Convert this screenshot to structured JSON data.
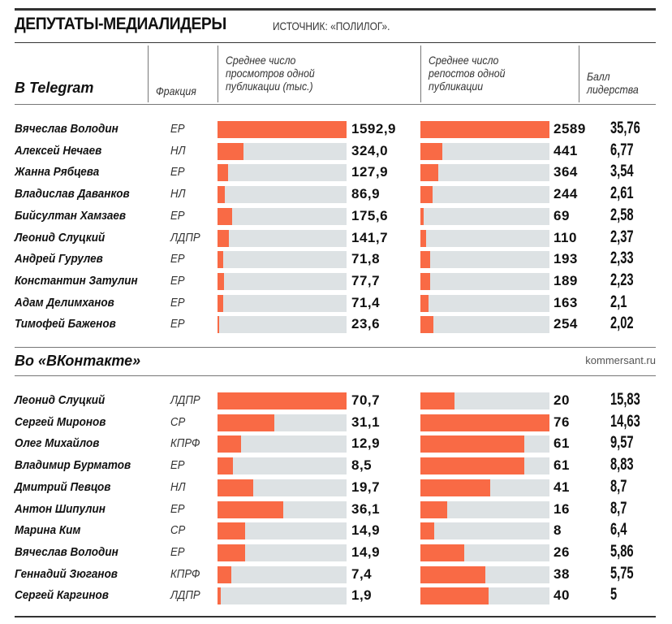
{
  "title": "ДЕПУТАТЫ-МЕДИАЛИДЕРЫ",
  "source": "ИСТОЧНИК: «ПОЛИЛОГ».",
  "headers": {
    "faction": "Фракция",
    "views": "Среднее число просмотров одной публикации (тыс.)",
    "reposts": "Среднее число репостов одной публикации",
    "score": "Балл лидерства"
  },
  "site": "kommersant.ru",
  "colors": {
    "bar": "#f96a45",
    "track": "#dde2e4"
  },
  "chart_data": {
    "type": "table",
    "sections": [
      {
        "title": "В Telegram",
        "rows": [
          {
            "name": "Вячеслав Володин",
            "faction": "ЕР",
            "views": "1592,9",
            "reposts": "2589",
            "score": "35,76"
          },
          {
            "name": "Алексей Нечаев",
            "faction": "НЛ",
            "views": "324,0",
            "reposts": "441",
            "score": "6,77"
          },
          {
            "name": "Жанна Рябцева",
            "faction": "ЕР",
            "views": "127,9",
            "reposts": "364",
            "score": "3,54"
          },
          {
            "name": "Владислав  Даванков",
            "faction": "НЛ",
            "views": "86,9",
            "reposts": "244",
            "score": "2,61"
          },
          {
            "name": "Бийсултан Хамзаев",
            "faction": "ЕР",
            "views": "175,6",
            "reposts": "69",
            "score": "2,58"
          },
          {
            "name": "Леонид Слуцкий",
            "faction": "ЛДПР",
            "views": "141,7",
            "reposts": "110",
            "score": "2,37"
          },
          {
            "name": "Андрей Гурулев",
            "faction": "ЕР",
            "views": "71,8",
            "reposts": "193",
            "score": "2,33"
          },
          {
            "name": "Константин Затулин",
            "faction": "ЕР",
            "views": "77,7",
            "reposts": "189",
            "score": "2,23"
          },
          {
            "name": "Адам Делимханов",
            "faction": "ЕР",
            "views": "71,4",
            "reposts": "163",
            "score": "2,1"
          },
          {
            "name": "Тимофей Баженов",
            "faction": "ЕР",
            "views": "23,6",
            "reposts": "254",
            "score": "2,02"
          }
        ]
      },
      {
        "title": "Во «ВКонтакте»",
        "rows": [
          {
            "name": "Леонид Слуцкий",
            "faction": "ЛДПР",
            "views": "70,7",
            "reposts": "20",
            "score": "15,83"
          },
          {
            "name": "Сергей Миронов",
            "faction": "СР",
            "views": "31,1",
            "reposts": "76",
            "score": "14,63"
          },
          {
            "name": "Олег Михайлов",
            "faction": "КПРФ",
            "views": "12,9",
            "reposts": "61",
            "score": "9,57"
          },
          {
            "name": "Владимир Бурматов",
            "faction": "ЕР",
            "views": "8,5",
            "reposts": "61",
            "score": "8,83"
          },
          {
            "name": "Дмитрий Певцов",
            "faction": "НЛ",
            "views": "19,7",
            "reposts": "41",
            "score": "8,7"
          },
          {
            "name": "Антон Шипулин",
            "faction": "ЕР",
            "views": "36,1",
            "reposts": "16",
            "score": "8,7"
          },
          {
            "name": "Марина Ким",
            "faction": "СР",
            "views": "14,9",
            "reposts": "8",
            "score": "6,4"
          },
          {
            "name": "Вячеслав Володин",
            "faction": "ЕР",
            "views": "14,9",
            "reposts": "26",
            "score": "5,86"
          },
          {
            "name": "Геннадий Зюганов",
            "faction": "КПРФ",
            "views": "7,4",
            "reposts": "38",
            "score": "5,75"
          },
          {
            "name": "Сергей Каргинов",
            "faction": "ЛДПР",
            "views": "1,9",
            "reposts": "40",
            "score": "5"
          }
        ]
      }
    ]
  }
}
